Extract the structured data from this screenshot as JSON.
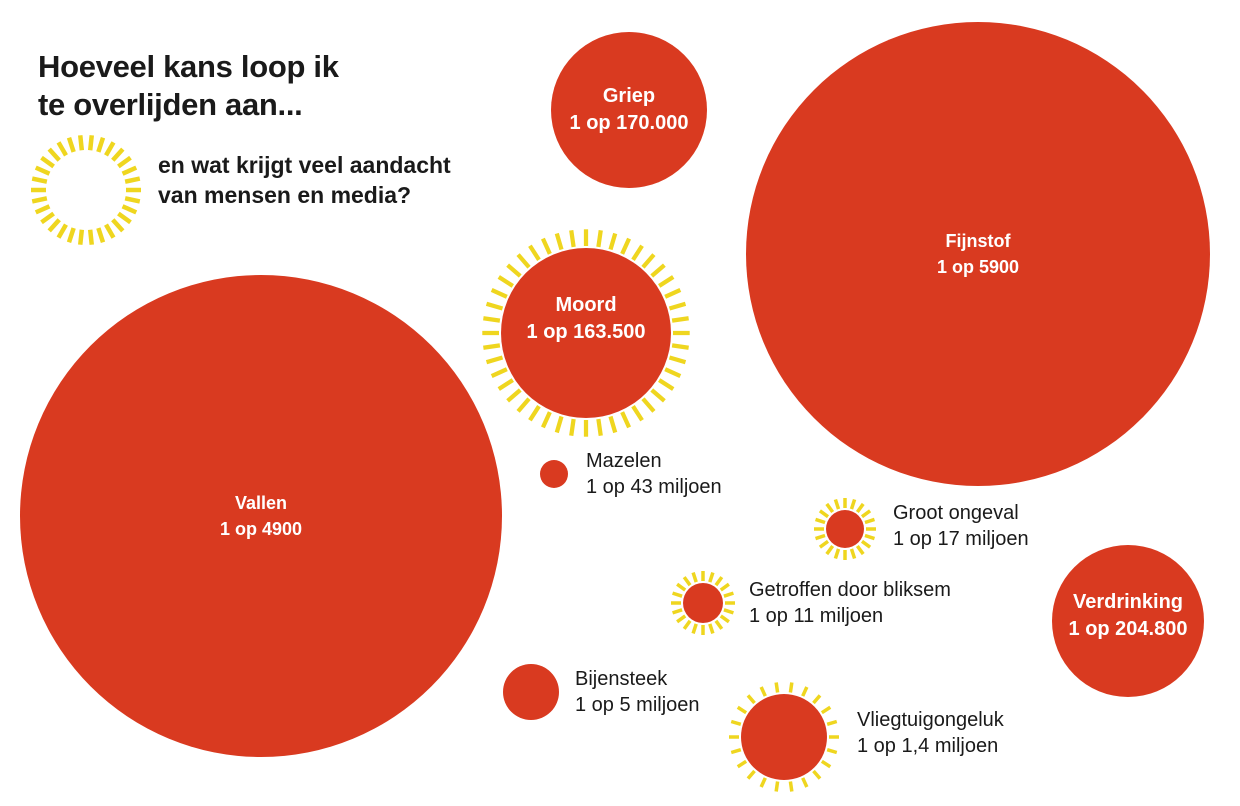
{
  "header": {
    "title_line1": "Hoeveel kans loop ik",
    "title_line2": "te overlijden aan...",
    "legend_line1": "en wat krijgt veel aandacht",
    "legend_line2": "van mensen en media?"
  },
  "colors": {
    "bubble": "#d93a20",
    "attention_ring": "#efd61f",
    "background": "#ffffff"
  },
  "bubbles": [
    {
      "name": "Griep",
      "odds": "1 op 170.000",
      "attention": false
    },
    {
      "name": "Fijnstof",
      "odds": "1 op 5900",
      "attention": false
    },
    {
      "name": "Moord",
      "odds": "1 op 163.500",
      "attention": true
    },
    {
      "name": "Vallen",
      "odds": "1 op 4900",
      "attention": false
    },
    {
      "name": "Mazelen",
      "odds": "1 op 43 miljoen",
      "attention": false
    },
    {
      "name": "Groot ongeval",
      "odds": "1 op 17 miljoen",
      "attention": true
    },
    {
      "name": "Getroffen door bliksem",
      "odds": "1 op 11 miljoen",
      "attention": true
    },
    {
      "name": "Verdrinking",
      "odds": "1 op 204.800",
      "attention": false
    },
    {
      "name": "Bijensteek",
      "odds": "1 op 5 miljoen",
      "attention": false
    },
    {
      "name": "Vliegtuigongeluk",
      "odds": "1 op 1,4 miljoen",
      "attention": true
    }
  ]
}
